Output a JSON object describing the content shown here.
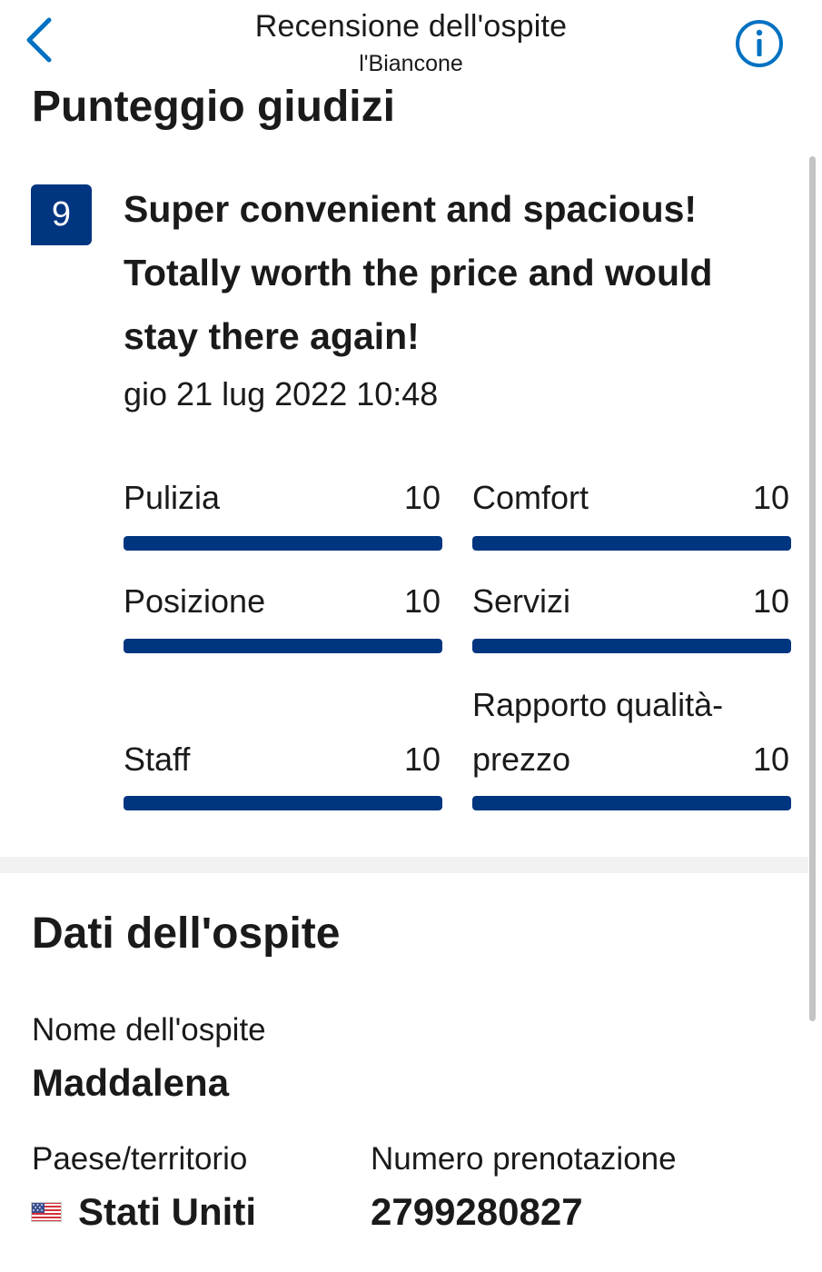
{
  "header": {
    "title": "Recensione dell'ospite",
    "subtitle": "l'Biancone",
    "back_icon": "chevron-left-icon",
    "info_icon": "info-circle-icon"
  },
  "colors": {
    "brand": "#003580",
    "accent": "#0071c2",
    "bar_track": "#e6e6e6"
  },
  "score_section": {
    "title": "Punteggio giudizi",
    "score": "9",
    "review_line1": "Super convenient and spacious!",
    "review_line2": "Totally worth the price and would",
    "review_line3": "stay there again!",
    "date": "gio 21 lug 2022 10:48"
  },
  "ratings": [
    {
      "label": "Pulizia",
      "value": "10",
      "fill": 1.0
    },
    {
      "label": "Comfort",
      "value": "10",
      "fill": 1.0
    },
    {
      "label": "Posizione",
      "value": "10",
      "fill": 1.0
    },
    {
      "label": "Servizi",
      "value": "10",
      "fill": 1.0
    },
    {
      "label": "Staff",
      "value": "10",
      "fill": 1.0
    },
    {
      "label": "Rapporto qualità-prezzo",
      "value": "10",
      "fill": 1.0
    }
  ],
  "guest_section": {
    "title": "Dati dell'ospite",
    "name_label": "Nome dell'ospite",
    "name_value": "Maddalena",
    "country_label": "Paese/territorio",
    "country_flag_icon": "us-flag-icon",
    "country_value": "Stati Uniti",
    "booking_label": "Numero prenotazione",
    "booking_value": "2799280827"
  }
}
